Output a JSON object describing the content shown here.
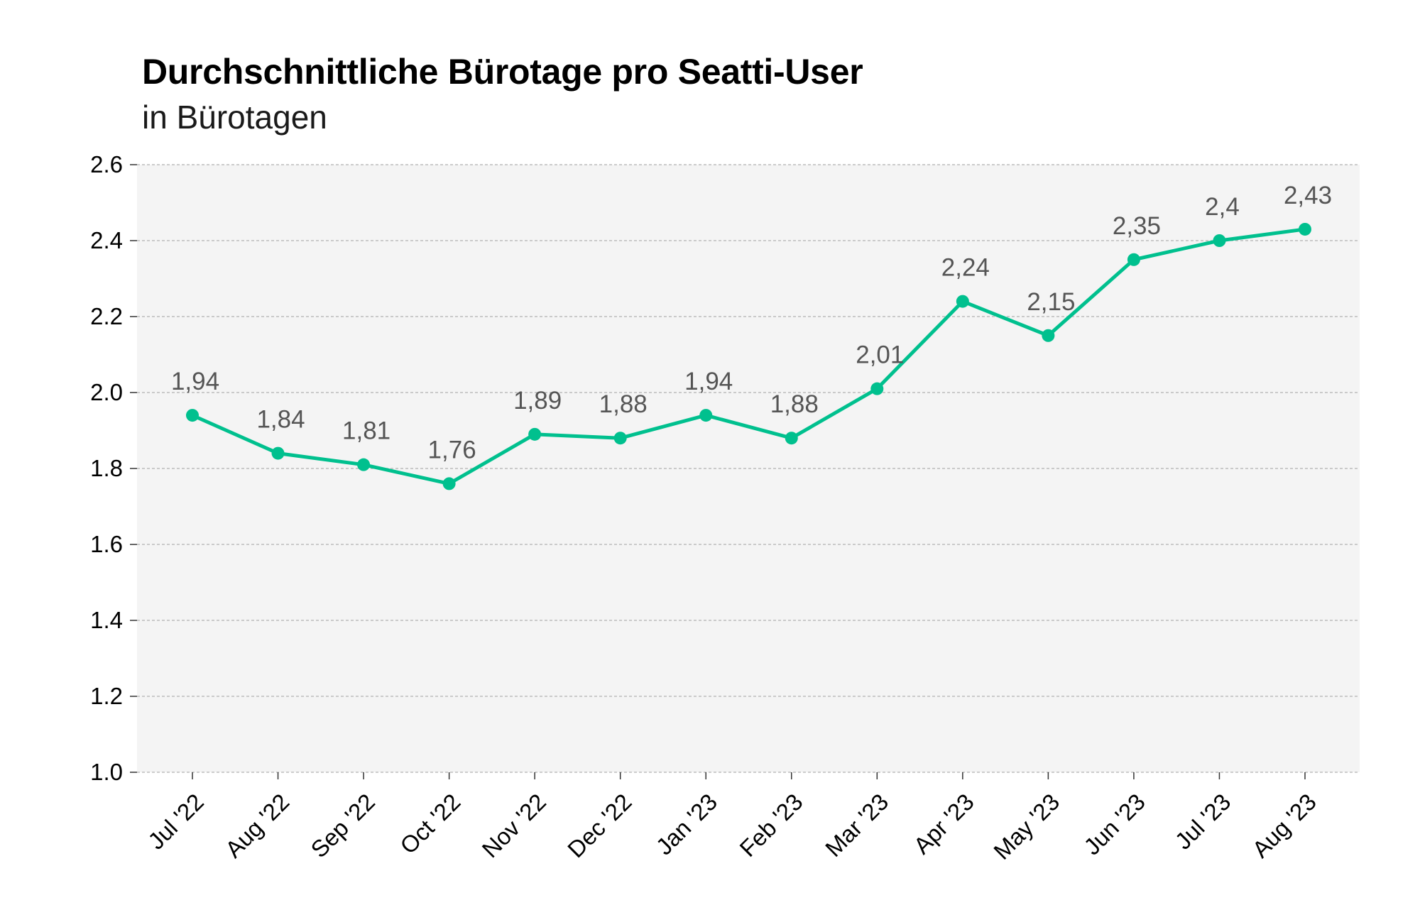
{
  "chart_data": {
    "type": "line",
    "title": "Durchschnittliche Bürotage pro Seatti-User",
    "subtitle": "in Bürotagen",
    "categories": [
      "Jul '22",
      "Aug '22",
      "Sep '22",
      "Oct '22",
      "Nov '22",
      "Dec '22",
      "Jan '23",
      "Feb '23",
      "Mar '23",
      "Apr '23",
      "May '23",
      "Jun '23",
      "Jul '23",
      "Aug '23"
    ],
    "series": [
      {
        "values": [
          1.94,
          1.84,
          1.81,
          1.76,
          1.89,
          1.88,
          1.94,
          1.88,
          2.01,
          2.24,
          2.15,
          2.35,
          2.4,
          2.43
        ],
        "data_labels": [
          "1,94",
          "1,84",
          "1,81",
          "1,76",
          "1,89",
          "1,88",
          "1,94",
          "1,88",
          "2,01",
          "2,24",
          "2,15",
          "2,35",
          "2,4",
          "2,43"
        ],
        "color": "#00c08e"
      }
    ],
    "ylim": [
      1.0,
      2.6
    ],
    "yticks": [
      "1.0",
      "1.2",
      "1.4",
      "1.6",
      "1.8",
      "2.0",
      "2.2",
      "2.4",
      "2.6"
    ],
    "xlabel": "",
    "ylabel": "",
    "grid": true,
    "legend": "none",
    "plot_background": "#f4f4f4",
    "grid_color": "#b0b0b0"
  }
}
